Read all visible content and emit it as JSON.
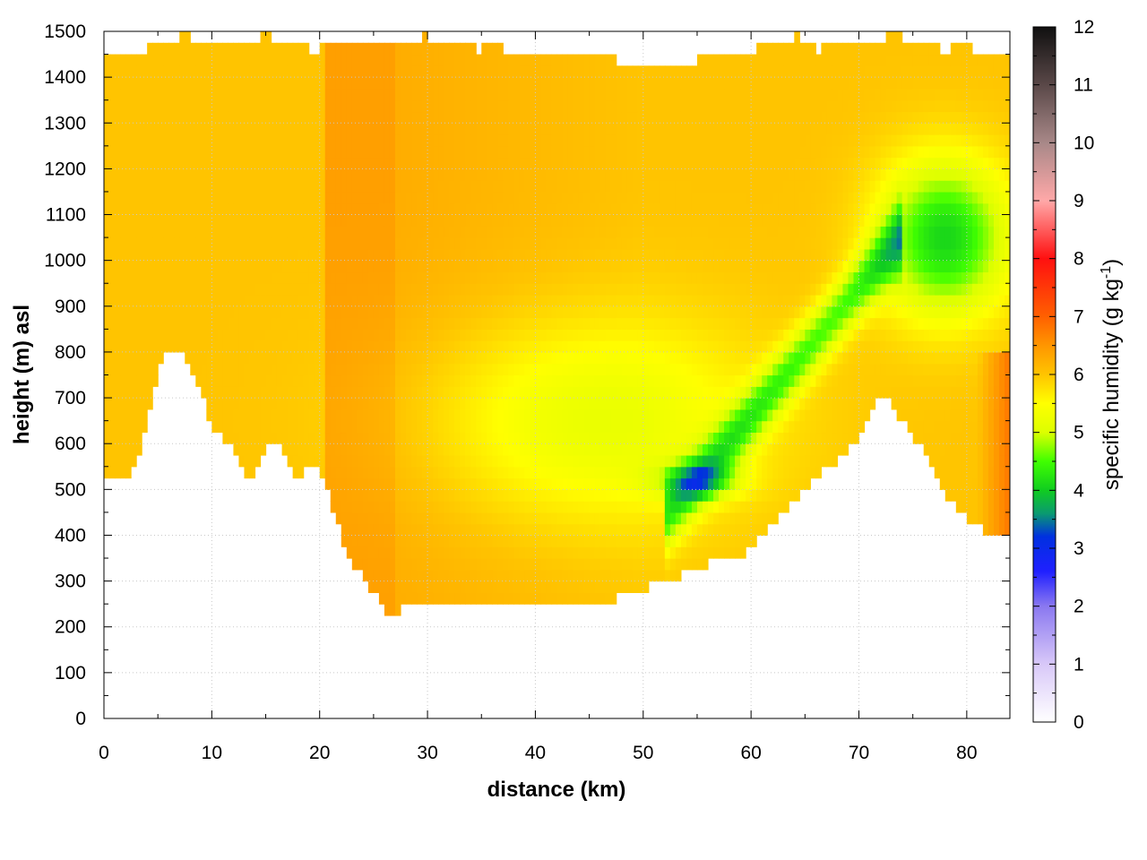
{
  "chart_data": {
    "type": "heatmap",
    "title": "",
    "xlabel": "distance (km)",
    "ylabel": "height (m) asl",
    "xlim": [
      0,
      84
    ],
    "ylim": [
      0,
      1500
    ],
    "x_ticks": [
      0,
      10,
      20,
      30,
      40,
      50,
      60,
      70,
      80
    ],
    "y_ticks": [
      0,
      100,
      200,
      300,
      400,
      500,
      600,
      700,
      800,
      900,
      1000,
      1100,
      1200,
      1300,
      1400,
      1500
    ],
    "grid": true,
    "colorbar": {
      "label": "specific humidity (g kg",
      "label_superscript": "-1",
      "label_suffix": ")",
      "range": [
        0,
        12
      ],
      "ticks": [
        0,
        1,
        2,
        3,
        4,
        5,
        6,
        7,
        8,
        9,
        10,
        11,
        12
      ],
      "stops": [
        {
          "value": 0,
          "color": "#ffffff"
        },
        {
          "value": 1,
          "color": "#d8c8f8"
        },
        {
          "value": 2,
          "color": "#8a78f0"
        },
        {
          "value": 2.6,
          "color": "#2020ff"
        },
        {
          "value": 3.2,
          "color": "#0030e0"
        },
        {
          "value": 3.6,
          "color": "#0a9a70"
        },
        {
          "value": 4,
          "color": "#10cc20"
        },
        {
          "value": 4.5,
          "color": "#40ff00"
        },
        {
          "value": 5,
          "color": "#ddff00"
        },
        {
          "value": 5.5,
          "color": "#ffff00"
        },
        {
          "value": 6,
          "color": "#ffc400"
        },
        {
          "value": 6.5,
          "color": "#ff9600"
        },
        {
          "value": 7,
          "color": "#ff6000"
        },
        {
          "value": 8,
          "color": "#ff1010"
        },
        {
          "value": 9,
          "color": "#ffa8a8"
        },
        {
          "value": 10,
          "color": "#a88888"
        },
        {
          "value": 11,
          "color": "#5a4848"
        },
        {
          "value": 12,
          "color": "#101010"
        }
      ]
    },
    "terrain_profile": {
      "x_km": [
        0,
        1,
        2,
        3,
        4,
        5,
        6,
        7,
        8,
        9,
        10,
        11,
        12,
        13,
        14,
        15,
        16,
        17,
        18,
        19,
        20,
        21,
        22,
        23,
        24,
        25,
        26,
        27,
        28,
        30,
        32,
        34,
        36,
        38,
        40,
        42,
        44,
        46,
        48,
        50,
        52,
        54,
        56,
        58,
        60,
        62,
        64,
        66,
        68,
        70,
        72,
        74,
        76,
        78,
        80,
        82,
        84
      ],
      "height_m": [
        510,
        530,
        515,
        560,
        650,
        760,
        815,
        800,
        765,
        715,
        640,
        615,
        580,
        530,
        525,
        585,
        605,
        575,
        510,
        560,
        545,
        480,
        400,
        340,
        320,
        275,
        240,
        230,
        245,
        250,
        255,
        245,
        240,
        238,
        240,
        238,
        245,
        248,
        265,
        285,
        300,
        320,
        340,
        350,
        370,
        420,
        470,
        530,
        560,
        620,
        720,
        650,
        580,
        480,
        440,
        400,
        400
      ]
    },
    "domain_top_m": [
      1450,
      1460,
      1440,
      1470,
      1480,
      1490,
      1480,
      1485,
      1470,
      1480,
      1490,
      1480,
      1470,
      1460,
      1470,
      1480,
      1470,
      1475,
      1460,
      1480,
      1490,
      1470,
      1480,
      1460,
      1470,
      1460,
      1450,
      1440,
      1445,
      1440,
      1450,
      1445,
      1430,
      1430,
      1430,
      1425,
      1430,
      1440,
      1450,
      1455,
      1460,
      1470,
      1480,
      1490,
      1460,
      1470,
      1475,
      1480,
      1485,
      1490,
      1480,
      1470,
      1460,
      1470,
      1460,
      1450,
      1455
    ],
    "field_description_values": {
      "background": 6.0,
      "dry_band_x_km": [
        20.5,
        27
      ],
      "dry_band_value": 6.4,
      "mid_moist_center": [
        45,
        650
      ],
      "mid_moist_value": 5.2,
      "green_plume_top_center": [
        78,
        1050
      ],
      "green_plume_value": 4.2,
      "green_base_center": [
        55,
        520
      ],
      "green_base_value": 4.6,
      "right_edge_value": 6.8
    }
  }
}
